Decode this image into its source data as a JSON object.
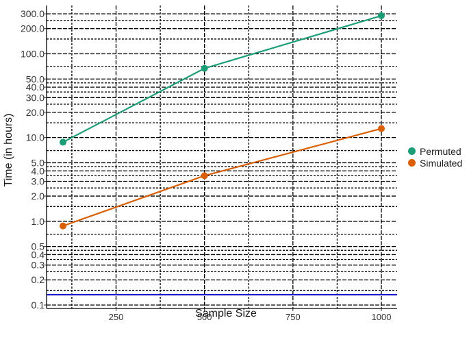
{
  "chart_data": {
    "type": "line",
    "title": "",
    "xlabel": "Sample Size",
    "ylabel": "Time (in hours)",
    "x_scale": "linear",
    "y_scale": "log10",
    "xlim": [
      80,
      1040
    ],
    "ylim": [
      0.1,
      350
    ],
    "x_ticks": [
      250,
      500,
      750,
      1000
    ],
    "y_ticks": [
      {
        "value": 0.1,
        "label": "0.1"
      },
      {
        "value": 0.2,
        "label": "0.2"
      },
      {
        "value": 0.3,
        "label": "0.3"
      },
      {
        "value": 0.4,
        "label": "0.4"
      },
      {
        "value": 0.5,
        "label": "0.5"
      },
      {
        "value": 1,
        "label": "1.0"
      },
      {
        "value": 2,
        "label": "2.0"
      },
      {
        "value": 3,
        "label": "3.0"
      },
      {
        "value": 4,
        "label": "4.0"
      },
      {
        "value": 5,
        "label": "5.0"
      },
      {
        "value": 10,
        "label": "10.0"
      },
      {
        "value": 20,
        "label": "20.0"
      },
      {
        "value": 30,
        "label": "30.0"
      },
      {
        "value": 40,
        "label": "40.0"
      },
      {
        "value": 50,
        "label": "50.0"
      },
      {
        "value": 100,
        "label": "100.0"
      },
      {
        "value": 200,
        "label": "200.0"
      },
      {
        "value": 300,
        "label": "300.0"
      }
    ],
    "grid": true,
    "reference_line": {
      "y": 0.133,
      "color": "#1010c8"
    },
    "legend_position": "right",
    "series": [
      {
        "name": "Permuted",
        "color": "#1b9e77",
        "x": [
          100,
          500,
          1000
        ],
        "y": [
          8.8,
          67,
          285
        ]
      },
      {
        "name": "Simulated",
        "color": "#d95f02",
        "x": [
          100,
          500,
          1000
        ],
        "y": [
          0.88,
          3.5,
          12.8
        ]
      }
    ]
  }
}
